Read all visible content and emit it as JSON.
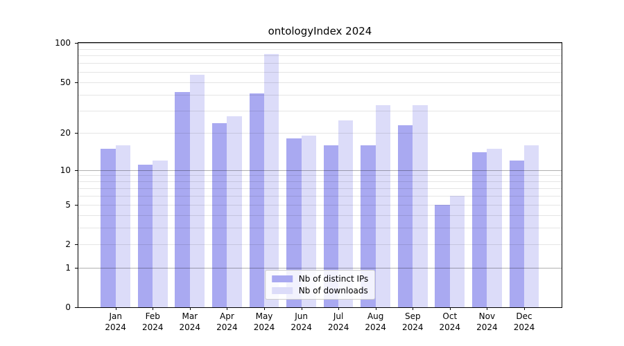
{
  "title": "ontologyIndex 2024",
  "chart_data": {
    "type": "bar",
    "title": "ontologyIndex 2024",
    "categories": [
      "Jan",
      "Feb",
      "Mar",
      "Apr",
      "May",
      "Jun",
      "Jul",
      "Aug",
      "Sep",
      "Oct",
      "Nov",
      "Dec"
    ],
    "year_label": "2024",
    "series": [
      {
        "name": "Nb of distinct IPs",
        "color": "#a9a9f1",
        "values": [
          15,
          11,
          42,
          24,
          41,
          18,
          16,
          16,
          23,
          5,
          14,
          12
        ]
      },
      {
        "name": "Nb of downloads",
        "color": "#dcdcf9",
        "values": [
          16,
          12,
          57,
          27,
          82,
          19,
          25,
          33,
          33,
          6,
          15,
          16
        ]
      }
    ],
    "xlabel": "",
    "ylabel": "",
    "yscale": "log1p",
    "ylim": [
      0,
      100
    ],
    "ytick_values": [
      0,
      1,
      2,
      5,
      10,
      20,
      50,
      100
    ],
    "ytick_labels": [
      "0",
      "1",
      "2",
      "5",
      "10",
      "20",
      "50",
      "100"
    ],
    "major_grid_values": [
      1,
      10,
      100
    ],
    "minor_grid_values": [
      2,
      3,
      4,
      5,
      6,
      7,
      8,
      9,
      20,
      30,
      40,
      50,
      60,
      70,
      80,
      90
    ],
    "grid": true,
    "legend_position": "lower center"
  }
}
